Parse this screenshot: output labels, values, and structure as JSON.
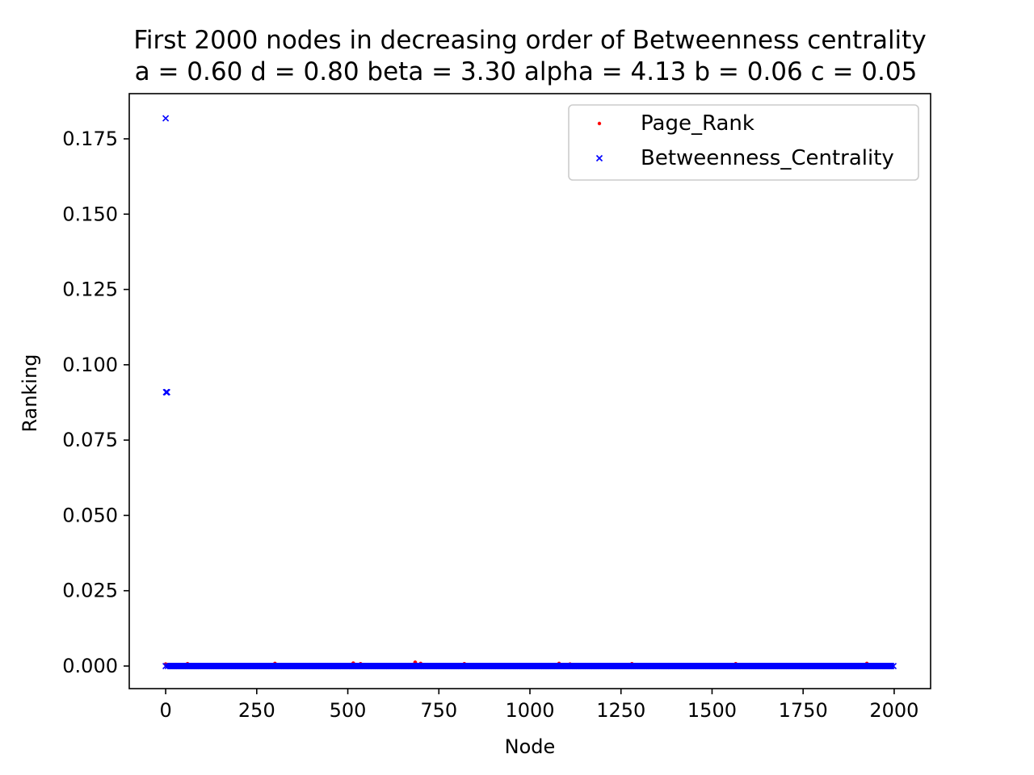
{
  "chart_data": {
    "type": "scatter",
    "title": "First 2000 nodes in decreasing order of Betweenness centrality",
    "subtitle": "a = 0.60 d = 0.80 beta = 3.30 alpha = 4.13 b = 0.06 c = 0.05",
    "xlabel": "Node",
    "ylabel": "Ranking",
    "xlim": [
      -100,
      2100
    ],
    "ylim": [
      -0.0075,
      0.19
    ],
    "xticks": [
      0,
      250,
      500,
      750,
      1000,
      1250,
      1500,
      1750,
      2000
    ],
    "xtick_labels": [
      "0",
      "250",
      "500",
      "750",
      "1000",
      "1250",
      "1500",
      "1750",
      "2000"
    ],
    "yticks": [
      0.0,
      0.025,
      0.05,
      0.075,
      0.1,
      0.125,
      0.15,
      0.175
    ],
    "ytick_labels": [
      "0.000",
      "0.025",
      "0.050",
      "0.075",
      "0.100",
      "0.125",
      "0.150",
      "0.175"
    ],
    "grid": false,
    "legend_position": "top-right",
    "series": [
      {
        "name": "Page_Rank",
        "marker": "dot",
        "color": "#ff0000",
        "x_range": [
          0,
          1999
        ],
        "baseline": 0.0,
        "highlights": [
          {
            "x": 0,
            "y": 0.0006
          },
          {
            "x": 60,
            "y": 0.0007
          },
          {
            "x": 300,
            "y": 0.0008
          },
          {
            "x": 515,
            "y": 0.0009
          },
          {
            "x": 535,
            "y": 0.0007
          },
          {
            "x": 685,
            "y": 0.0012
          },
          {
            "x": 700,
            "y": 0.0008
          },
          {
            "x": 820,
            "y": 0.0007
          },
          {
            "x": 1080,
            "y": 0.0008
          },
          {
            "x": 1110,
            "y": 0.0006
          },
          {
            "x": 1280,
            "y": 0.0007
          },
          {
            "x": 1565,
            "y": 0.0007
          },
          {
            "x": 1925,
            "y": 0.0008
          }
        ]
      },
      {
        "name": "Betweenness_Centrality",
        "marker": "x",
        "color": "#0000ff",
        "x_range": [
          0,
          1999
        ],
        "baseline": 0.0,
        "highlights": [
          {
            "x": 0,
            "y": 0.1818
          },
          {
            "x": 1,
            "y": 0.0909
          },
          {
            "x": 2,
            "y": 0.0909
          },
          {
            "x": 3,
            "y": 0.0909
          },
          {
            "x": 4,
            "y": 0.0909
          }
        ]
      }
    ]
  }
}
